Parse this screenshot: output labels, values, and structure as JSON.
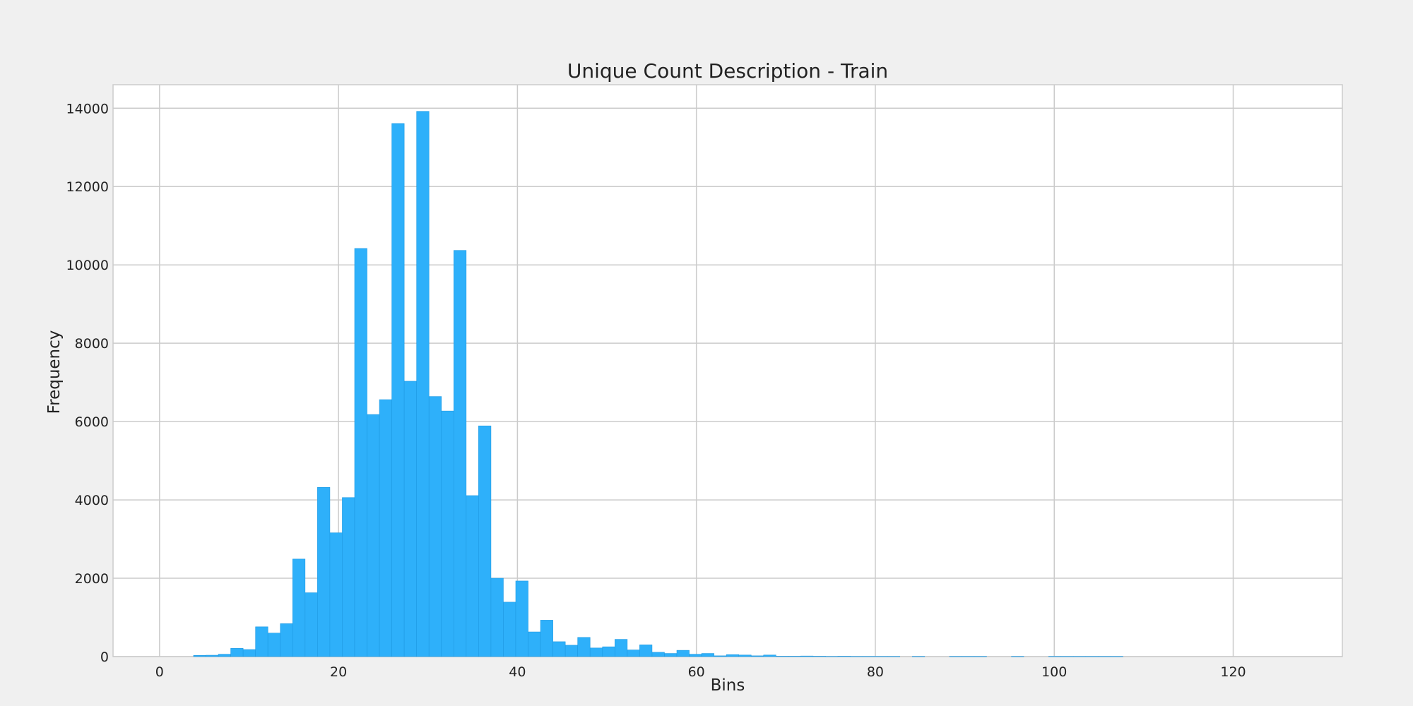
{
  "chart_data": {
    "type": "bar",
    "title": "Unique Count Description - Train",
    "xlabel": "Bins",
    "ylabel": "Frequency",
    "xlim": [
      -5.2,
      132.2
    ],
    "ylim": [
      0,
      14600
    ],
    "xticks": [
      0,
      20,
      40,
      60,
      80,
      100,
      120
    ],
    "yticks": [
      0,
      2000,
      4000,
      6000,
      8000,
      10000,
      12000,
      14000
    ],
    "grid": true,
    "colors": {
      "background": "#f0f0f0",
      "plot_background": "#ffffff",
      "bar_fill": "#2eb0fa",
      "bar_edge": "#1f9ae3",
      "grid": "#cbcbcb"
    },
    "bins": {
      "start": 3.8,
      "width": 1.385,
      "values": [
        30,
        35,
        60,
        210,
        180,
        760,
        600,
        840,
        2490,
        1630,
        4320,
        3160,
        4060,
        10420,
        6180,
        6560,
        13610,
        7030,
        13920,
        6640,
        6270,
        10370,
        4110,
        5890,
        2000,
        1390,
        1930,
        630,
        930,
        380,
        290,
        490,
        220,
        250,
        440,
        170,
        300,
        110,
        80,
        160,
        60,
        80,
        20,
        50,
        40,
        20,
        40,
        10,
        10,
        15,
        10,
        5,
        10,
        5,
        5,
        5,
        5,
        0,
        5,
        0,
        0,
        5,
        5,
        5,
        0,
        0,
        5,
        0,
        0,
        5,
        5,
        5,
        5,
        5,
        5,
        0,
        0,
        0,
        0,
        0,
        0,
        0,
        0,
        0,
        0,
        0,
        0,
        0,
        0,
        0,
        0,
        0,
        0,
        0,
        0,
        0,
        0,
        0,
        0,
        5
      ]
    }
  }
}
